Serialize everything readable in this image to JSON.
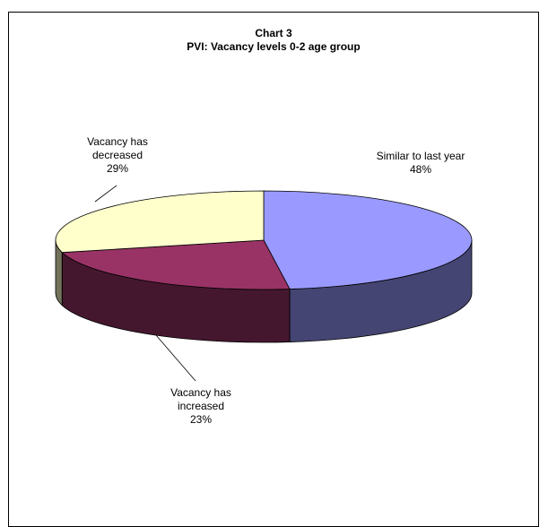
{
  "chart_data": {
    "type": "pie",
    "title_lines": [
      "Chart 3",
      "PVI: Vacancy levels 0-2 age group"
    ],
    "slices": [
      {
        "label_lines": [
          "Similar to last year"
        ],
        "percent_label": "48%",
        "value": 48,
        "color": "#9999ff"
      },
      {
        "label_lines": [
          "Vacancy has",
          "increased"
        ],
        "percent_label": "23%",
        "value": 23,
        "color": "#993366"
      },
      {
        "label_lines": [
          "Vacancy has",
          "decreased"
        ],
        "percent_label": "29%",
        "value": 29,
        "color": "#ffffcc"
      }
    ],
    "style": "3d",
    "legend": "none"
  }
}
